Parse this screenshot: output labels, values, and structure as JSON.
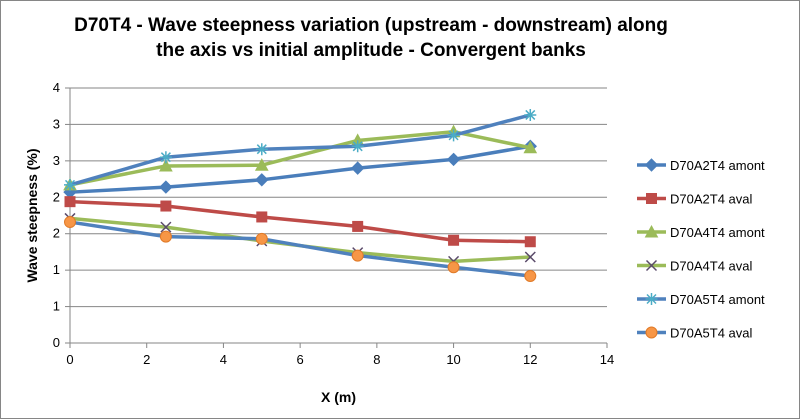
{
  "chart_data": {
    "type": "line",
    "title": "D70T4 - Wave steepness variation (upstream - downstream) along the axis vs initial amplitude - Convergent banks",
    "xlabel": "X (m)",
    "ylabel": "Wave steepness (%)",
    "xlim": [
      0,
      14
    ],
    "ylim": [
      0,
      3.5
    ],
    "x_ticks": [
      0,
      2,
      4,
      6,
      8,
      10,
      12,
      14
    ],
    "x_tick_labels": [
      "0",
      "2",
      "4",
      "6",
      "8",
      "10",
      "12",
      "14"
    ],
    "y_ticks": [
      0,
      0.5,
      1,
      1.5,
      2,
      2.5,
      3,
      3.5
    ],
    "y_tick_labels": [
      "0",
      "1",
      "1",
      "2",
      "2",
      "3",
      "3",
      "4"
    ],
    "grid": "horizontal",
    "legend_position": "right",
    "series": [
      {
        "name": "D70A2T4 amont",
        "color": "#4A7EBB",
        "marker": "diamond",
        "x": [
          0,
          2.5,
          5,
          7.5,
          10,
          12
        ],
        "y": [
          2.07,
          2.14,
          2.24,
          2.4,
          2.52,
          2.7
        ]
      },
      {
        "name": "D70A2T4 aval",
        "color": "#BE4B48",
        "marker": "square",
        "x": [
          0,
          2.5,
          5,
          7.5,
          10,
          12
        ],
        "y": [
          1.94,
          1.88,
          1.73,
          1.6,
          1.41,
          1.39
        ]
      },
      {
        "name": "D70A4T4 amont",
        "color": "#9BBB59",
        "marker": "triangle",
        "x": [
          0,
          2.5,
          5,
          7.5,
          10,
          12
        ],
        "y": [
          2.17,
          2.43,
          2.44,
          2.78,
          2.9,
          2.68
        ]
      },
      {
        "name": "D70A4T4 aval",
        "color": "#9BBB59",
        "marker": "x",
        "x": [
          0,
          2.5,
          5,
          7.5,
          10,
          12
        ],
        "y": [
          1.71,
          1.59,
          1.4,
          1.24,
          1.12,
          1.18
        ]
      },
      {
        "name": "D70A5T4 amont",
        "color": "#4F81BD",
        "marker": "star",
        "x": [
          0,
          2.5,
          5,
          7.5,
          10,
          12
        ],
        "y": [
          2.17,
          2.55,
          2.66,
          2.7,
          2.85,
          3.13
        ]
      },
      {
        "name": "D70A5T4 aval",
        "color": "#4F81BD",
        "marker": "circle",
        "marker_color": "#F79646",
        "x": [
          0,
          2.5,
          5,
          7.5,
          10,
          12
        ],
        "y": [
          1.66,
          1.46,
          1.43,
          1.2,
          1.04,
          0.92
        ]
      }
    ]
  }
}
